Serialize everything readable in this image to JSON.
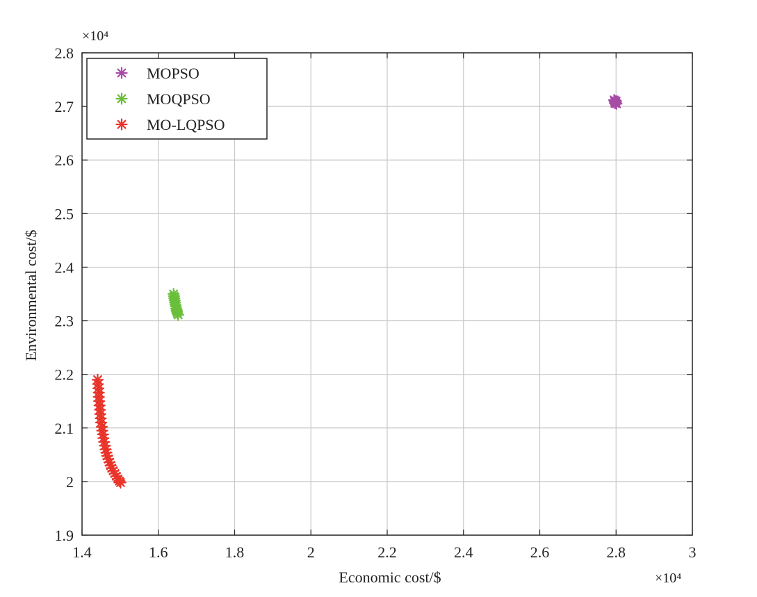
{
  "chart_data": {
    "type": "scatter",
    "title": "",
    "xlabel": "Economic cost/$",
    "ylabel": "Environmental cost/$",
    "x_exponent_label": "×10⁴",
    "y_exponent_label": "×10⁴",
    "xlim": [
      1.4,
      3.0
    ],
    "ylim": [
      1.9,
      2.8
    ],
    "x_ticks": [
      1.4,
      1.6,
      1.8,
      2.0,
      2.2,
      2.4,
      2.6,
      2.8,
      3.0
    ],
    "x_tick_labels": [
      "1.4",
      "1.6",
      "1.8",
      "2",
      "2.2",
      "2.4",
      "2.6",
      "2.8",
      "3"
    ],
    "y_ticks": [
      1.9,
      2.0,
      2.1,
      2.2,
      2.3,
      2.4,
      2.5,
      2.6,
      2.7,
      2.8
    ],
    "y_tick_labels": [
      "1.9",
      "2",
      "2.1",
      "2.2",
      "2.3",
      "2.4",
      "2.5",
      "2.6",
      "2.7",
      "2.8"
    ],
    "grid": true,
    "legend_position": "top-left",
    "marker": "asterisk",
    "series": [
      {
        "name": "MOPSO",
        "color": "#a64ca6",
        "points": [
          [
            2.795,
            2.712
          ],
          [
            2.796,
            2.71
          ],
          [
            2.797,
            2.709
          ],
          [
            2.798,
            2.708
          ],
          [
            2.799,
            2.707
          ],
          [
            2.8,
            2.706
          ],
          [
            2.801,
            2.705
          ],
          [
            2.797,
            2.706
          ],
          [
            2.8,
            2.71
          ]
        ]
      },
      {
        "name": "MOQPSO",
        "color": "#6abf3a",
        "points": [
          [
            1.64,
            2.35
          ],
          [
            1.641,
            2.346
          ],
          [
            1.642,
            2.342
          ],
          [
            1.643,
            2.338
          ],
          [
            1.644,
            2.334
          ],
          [
            1.645,
            2.33
          ],
          [
            1.646,
            2.327
          ],
          [
            1.647,
            2.323
          ],
          [
            1.648,
            2.32
          ],
          [
            1.649,
            2.317
          ],
          [
            1.65,
            2.314
          ],
          [
            1.652,
            2.311
          ]
        ]
      },
      {
        "name": "MO-LQPSO",
        "color": "#e8342a",
        "points": [
          [
            1.441,
            2.19
          ],
          [
            1.442,
            2.182
          ],
          [
            1.443,
            2.174
          ],
          [
            1.444,
            2.166
          ],
          [
            1.444,
            2.158
          ],
          [
            1.445,
            2.15
          ],
          [
            1.446,
            2.142
          ],
          [
            1.447,
            2.134
          ],
          [
            1.448,
            2.126
          ],
          [
            1.449,
            2.118
          ],
          [
            1.45,
            2.11
          ],
          [
            1.452,
            2.102
          ],
          [
            1.453,
            2.095
          ],
          [
            1.455,
            2.088
          ],
          [
            1.456,
            2.081
          ],
          [
            1.458,
            2.074
          ],
          [
            1.46,
            2.067
          ],
          [
            1.462,
            2.06
          ],
          [
            1.464,
            2.054
          ],
          [
            1.466,
            2.048
          ],
          [
            1.469,
            2.042
          ],
          [
            1.472,
            2.036
          ],
          [
            1.475,
            2.03
          ],
          [
            1.478,
            2.025
          ],
          [
            1.482,
            2.02
          ],
          [
            1.486,
            2.015
          ],
          [
            1.49,
            2.01
          ],
          [
            1.494,
            2.005
          ],
          [
            1.498,
            2.001
          ],
          [
            1.501,
            1.998
          ]
        ]
      }
    ]
  }
}
